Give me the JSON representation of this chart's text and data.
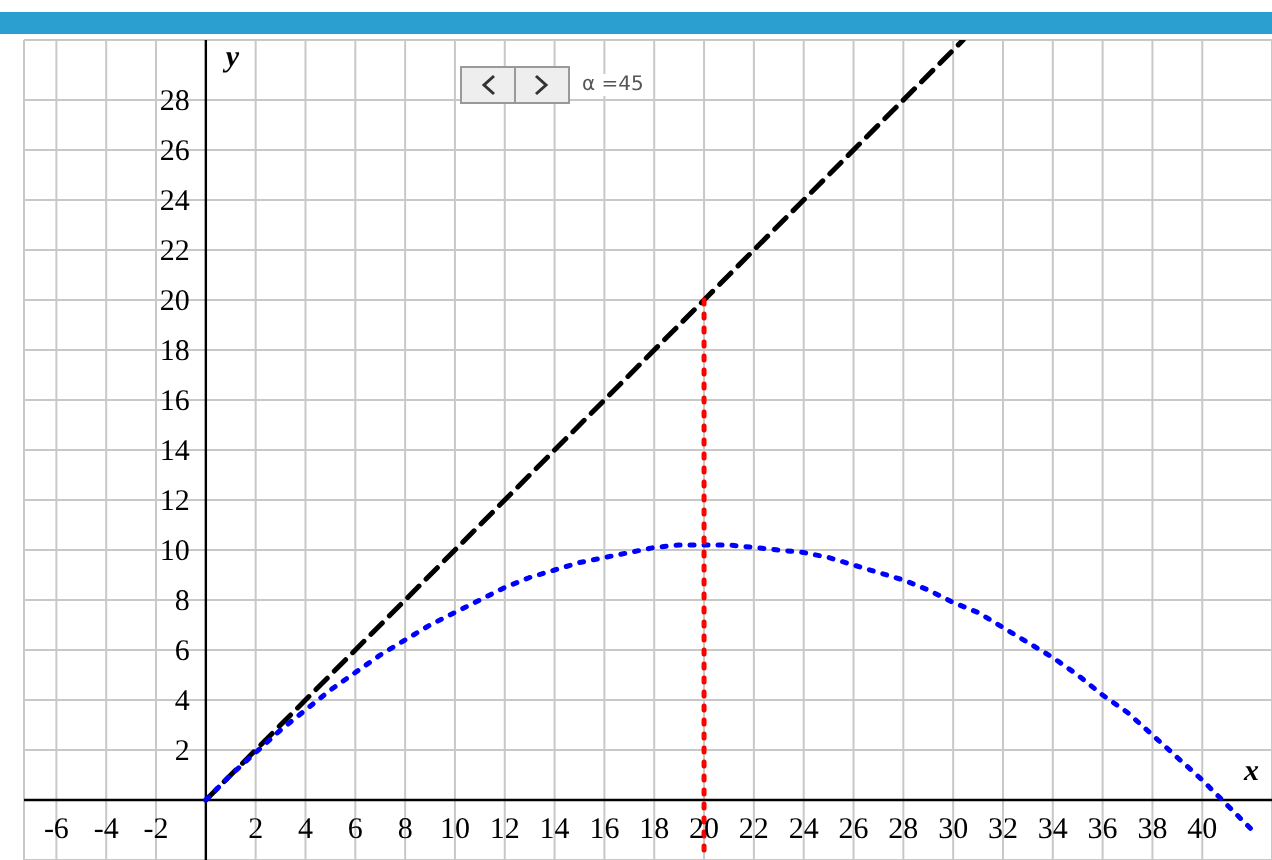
{
  "chart_data": {
    "type": "line",
    "xlabel": "x",
    "ylabel": "y",
    "annotations": [
      "α =45"
    ],
    "xlim": [
      -7.3,
      42.8
    ],
    "ylim": [
      -2.4,
      30.4
    ],
    "xticks": [
      -6,
      -4,
      -2,
      2,
      4,
      6,
      8,
      10,
      12,
      14,
      16,
      18,
      20,
      22,
      24,
      26,
      28,
      30,
      32,
      34,
      36,
      38,
      40
    ],
    "yticks": [
      2,
      4,
      6,
      8,
      10,
      12,
      14,
      16,
      18,
      20,
      22,
      24,
      26,
      28
    ],
    "grid": true,
    "legend": false,
    "marker": "none",
    "series": [
      {
        "color": "#000000",
        "line_style": "dashed",
        "x": [
          0,
          30.4
        ],
        "values": [
          0,
          30.4
        ]
      },
      {
        "color": "#0000ff",
        "line_style": "dotted",
        "x": [
          0,
          1,
          2,
          3,
          4,
          5,
          6,
          7,
          8,
          9,
          10,
          11,
          12,
          13,
          14,
          15,
          16,
          17,
          18,
          19,
          20,
          21,
          22,
          23,
          24,
          25,
          26,
          27,
          28,
          29,
          30,
          31,
          32,
          33,
          34,
          35,
          36,
          37,
          38,
          39,
          40,
          41,
          42
        ],
        "values": [
          0,
          1.0,
          1.9,
          2.8,
          3.6,
          4.4,
          5.1,
          5.8,
          6.4,
          7.0,
          7.5,
          8.0,
          8.5,
          8.9,
          9.2,
          9.5,
          9.7,
          9.9,
          10.1,
          10.2,
          10.2,
          10.2,
          10.1,
          10.0,
          9.9,
          9.7,
          9.4,
          9.1,
          8.8,
          8.4,
          7.9,
          7.5,
          6.9,
          6.3,
          5.7,
          5.0,
          4.2,
          3.5,
          2.6,
          1.7,
          0.8,
          -0.2,
          -1.2
        ]
      },
      {
        "color": "#ff0000",
        "line_style": "dotted",
        "x": [
          20,
          20
        ],
        "values": [
          20,
          -2.4
        ]
      }
    ]
  }
}
